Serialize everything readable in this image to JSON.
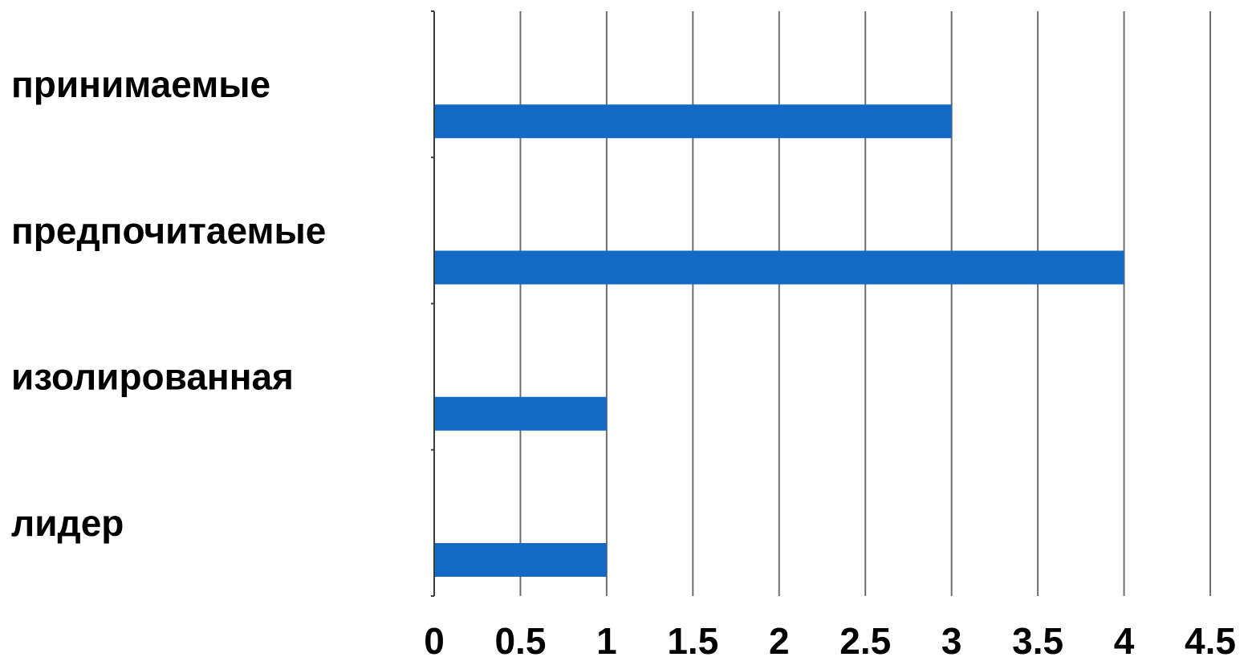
{
  "chart_data": {
    "type": "bar",
    "orientation": "horizontal",
    "categories": [
      "принимаемые",
      "предпочитаемые",
      "изолированная",
      "лидер"
    ],
    "values": [
      3,
      4,
      1,
      1
    ],
    "xlim": [
      0,
      4.5
    ],
    "x_ticks": [
      0,
      0.5,
      1,
      1.5,
      2,
      2.5,
      3,
      3.5,
      4,
      4.5
    ],
    "x_tick_labels": [
      "0",
      "0.5",
      "1",
      "1.5",
      "2",
      "2.5",
      "3",
      "3.5",
      "4",
      "4.5"
    ],
    "title": "",
    "xlabel": "",
    "ylabel": "",
    "grid": "vertical",
    "legend": "none",
    "colors": {
      "bar": "#1469C4",
      "grid": "#6e6e6e",
      "axis": "#3c3c3c",
      "text": "#000000"
    }
  }
}
